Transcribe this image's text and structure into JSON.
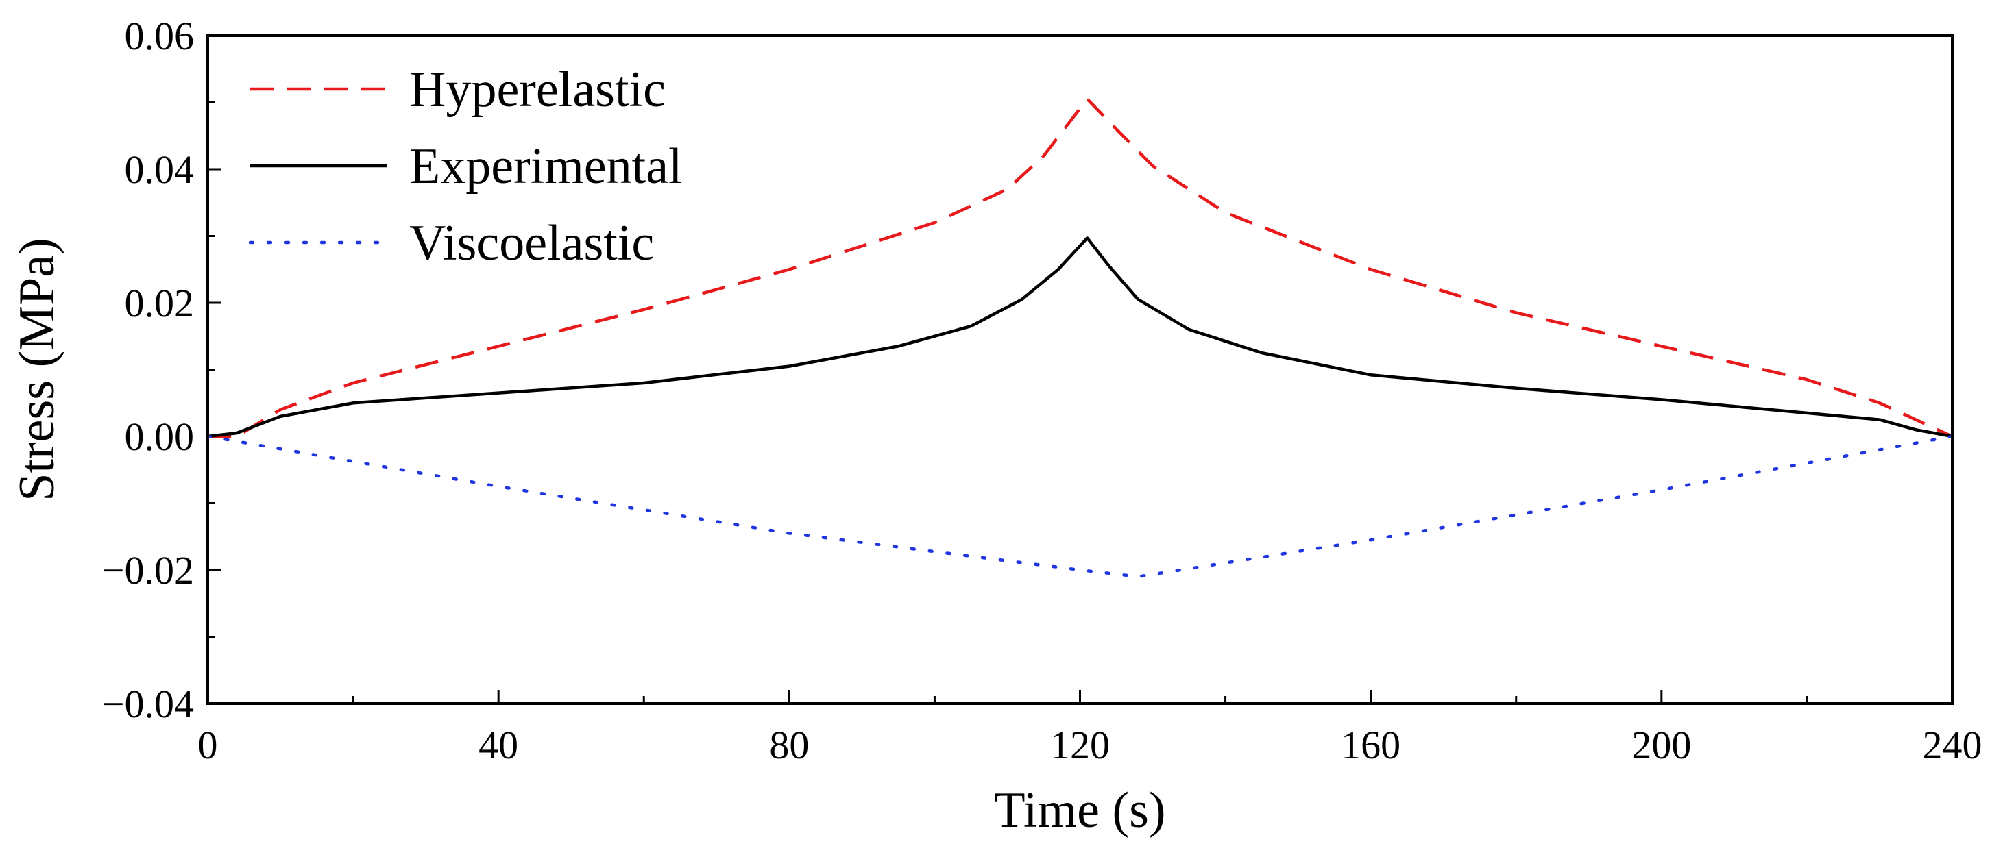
{
  "chart_data": {
    "type": "line",
    "title": "",
    "xlabel": "Time (s)",
    "ylabel": "Stress (MPa)",
    "xlim": [
      0,
      240
    ],
    "ylim": [
      -0.04,
      0.06
    ],
    "xticks": [
      0,
      40,
      80,
      120,
      160,
      200,
      240
    ],
    "xtick_labels": [
      "0",
      "40",
      "80",
      "120",
      "160",
      "200",
      "240"
    ],
    "yticks": [
      -0.04,
      -0.02,
      0.0,
      0.02,
      0.04,
      0.06
    ],
    "ytick_labels": [
      "−0.04",
      "−0.02",
      "0.00",
      "0.02",
      "0.04",
      "0.06"
    ],
    "grid": false,
    "legend_position": "top-left",
    "series": [
      {
        "name": "Hyperelastic",
        "color": "#e8191b",
        "style": "dashed",
        "x": [
          0,
          4,
          10,
          20,
          40,
          60,
          80,
          100,
          110,
          115,
          121,
          125,
          130,
          140,
          160,
          180,
          200,
          220,
          230,
          240
        ],
        "y": [
          0.0,
          0.0,
          0.004,
          0.008,
          0.0135,
          0.019,
          0.025,
          0.032,
          0.037,
          0.042,
          0.0505,
          0.046,
          0.0405,
          0.0335,
          0.025,
          0.0185,
          0.0135,
          0.0085,
          0.005,
          0.0
        ]
      },
      {
        "name": "Experimental",
        "color": "#000000",
        "style": "solid",
        "x": [
          0,
          4,
          10,
          20,
          40,
          60,
          80,
          95,
          105,
          112,
          117,
          121,
          124,
          128,
          135,
          145,
          160,
          180,
          200,
          220,
          230,
          235,
          240
        ],
        "y": [
          0.0,
          0.0005,
          0.003,
          0.005,
          0.0065,
          0.008,
          0.0105,
          0.0135,
          0.0165,
          0.0205,
          0.025,
          0.0297,
          0.0255,
          0.0205,
          0.016,
          0.0125,
          0.0092,
          0.0072,
          0.0055,
          0.0035,
          0.0025,
          0.001,
          0.0
        ]
      },
      {
        "name": "Viscoelastic",
        "color": "#1f35e0",
        "style": "dotted",
        "x": [
          0,
          40,
          80,
          120,
          128,
          160,
          200,
          240
        ],
        "y": [
          0.0,
          -0.0075,
          -0.0145,
          -0.02,
          -0.021,
          -0.0155,
          -0.008,
          0.0
        ]
      }
    ]
  }
}
